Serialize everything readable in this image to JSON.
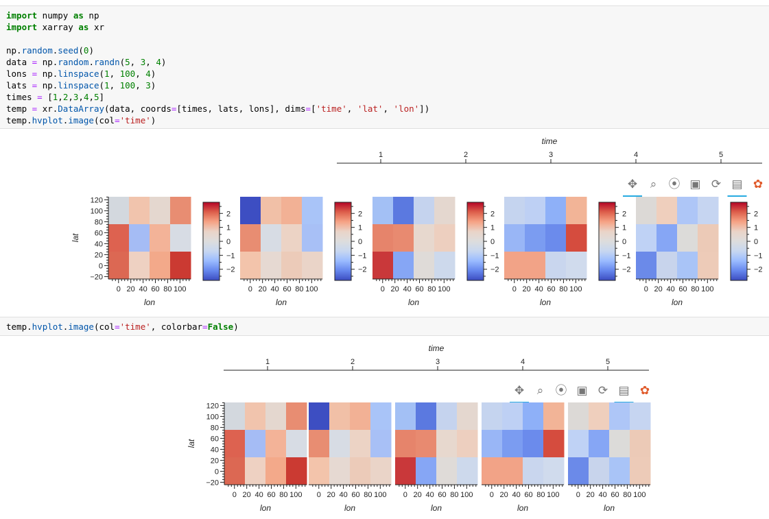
{
  "cell1": {
    "lines": [
      [
        [
          "kw",
          "import"
        ],
        [
          "t",
          " numpy "
        ],
        [
          "kw",
          "as"
        ],
        [
          "t",
          " np"
        ]
      ],
      [
        [
          "kw",
          "import"
        ],
        [
          "t",
          " xarray "
        ],
        [
          "kw",
          "as"
        ],
        [
          "t",
          " xr"
        ]
      ],
      [
        [
          "t",
          ""
        ]
      ],
      [
        [
          "t",
          "np."
        ],
        [
          "nb",
          "random"
        ],
        [
          "t",
          "."
        ],
        [
          "nb",
          "seed"
        ],
        [
          "t",
          "("
        ],
        [
          "num",
          "0"
        ],
        [
          "t",
          ")"
        ]
      ],
      [
        [
          "t",
          "data "
        ],
        [
          "op",
          "="
        ],
        [
          "t",
          " np."
        ],
        [
          "nb",
          "random"
        ],
        [
          "t",
          "."
        ],
        [
          "nb",
          "randn"
        ],
        [
          "t",
          "("
        ],
        [
          "num",
          "5"
        ],
        [
          "t",
          ", "
        ],
        [
          "num",
          "3"
        ],
        [
          "t",
          ", "
        ],
        [
          "num",
          "4"
        ],
        [
          "t",
          ")"
        ]
      ],
      [
        [
          "t",
          "lons "
        ],
        [
          "op",
          "="
        ],
        [
          "t",
          " np."
        ],
        [
          "nb",
          "linspace"
        ],
        [
          "t",
          "("
        ],
        [
          "num",
          "1"
        ],
        [
          "t",
          ", "
        ],
        [
          "num",
          "100"
        ],
        [
          "t",
          ", "
        ],
        [
          "num",
          "4"
        ],
        [
          "t",
          ")"
        ]
      ],
      [
        [
          "t",
          "lats "
        ],
        [
          "op",
          "="
        ],
        [
          "t",
          " np."
        ],
        [
          "nb",
          "linspace"
        ],
        [
          "t",
          "("
        ],
        [
          "num",
          "1"
        ],
        [
          "t",
          ", "
        ],
        [
          "num",
          "100"
        ],
        [
          "t",
          ", "
        ],
        [
          "num",
          "3"
        ],
        [
          "t",
          ")"
        ]
      ],
      [
        [
          "t",
          "times "
        ],
        [
          "op",
          "="
        ],
        [
          "t",
          " ["
        ],
        [
          "num",
          "1"
        ],
        [
          "t",
          ","
        ],
        [
          "num",
          "2"
        ],
        [
          "t",
          ","
        ],
        [
          "num",
          "3"
        ],
        [
          "t",
          ","
        ],
        [
          "num",
          "4"
        ],
        [
          "t",
          ","
        ],
        [
          "num",
          "5"
        ],
        [
          "t",
          "]"
        ]
      ],
      [
        [
          "t",
          "temp "
        ],
        [
          "op",
          "="
        ],
        [
          "t",
          " xr."
        ],
        [
          "nb",
          "DataArray"
        ],
        [
          "t",
          "(data, coords"
        ],
        [
          "op",
          "="
        ],
        [
          "t",
          "[times, lats, lons], dims"
        ],
        [
          "op",
          "="
        ],
        [
          "t",
          "["
        ],
        [
          "str",
          "'time'"
        ],
        [
          "t",
          ", "
        ],
        [
          "str",
          "'lat'"
        ],
        [
          "t",
          ", "
        ],
        [
          "str",
          "'lon'"
        ],
        [
          "t",
          "])"
        ]
      ],
      [
        [
          "t",
          "temp."
        ],
        [
          "nb",
          "hvplot"
        ],
        [
          "t",
          "."
        ],
        [
          "nb",
          "image"
        ],
        [
          "t",
          "(col"
        ],
        [
          "op",
          "="
        ],
        [
          "str",
          "'time'"
        ],
        [
          "t",
          ")"
        ]
      ]
    ]
  },
  "cell2": {
    "lines": [
      [
        [
          "t",
          "temp."
        ],
        [
          "nb",
          "hvplot"
        ],
        [
          "t",
          "."
        ],
        [
          "nb",
          "image"
        ],
        [
          "t",
          "(col"
        ],
        [
          "op",
          "="
        ],
        [
          "str",
          "'time'"
        ],
        [
          "t",
          ", colorbar"
        ],
        [
          "op",
          "="
        ],
        [
          "kw",
          "False"
        ],
        [
          "t",
          ")"
        ]
      ]
    ]
  },
  "slider": {
    "title": "time",
    "ticks": [
      "1",
      "2",
      "3",
      "4",
      "5"
    ]
  },
  "axes": {
    "xlabel": "lon",
    "ylabel": "lat",
    "xticks": [
      "0",
      "20",
      "40",
      "60",
      "80",
      "100"
    ],
    "yticks": [
      "120",
      "100",
      "80",
      "60",
      "40",
      "20",
      "0",
      "−20"
    ],
    "cbar_ticks": [
      "2",
      "1",
      "0",
      "−1",
      "−2"
    ]
  },
  "toolbar": {
    "icons": [
      "pan-icon",
      "box-zoom-icon",
      "wheel-zoom-icon",
      "save-icon",
      "reset-icon",
      "hover-icon",
      "bokeh-logo-icon"
    ]
  },
  "colors": {
    "grid": [
      [
        [
          "#d3d8de",
          "#f1c4ad",
          "#e4d7cf",
          "#e88d72"
        ],
        [
          "#dd6250",
          "#a5bcf5",
          "#f3b398",
          "#d7dce4"
        ],
        [
          "#dc6853",
          "#eed1c2",
          "#f3a98a",
          "#cb3a32"
        ]
      ],
      [
        [
          "#3d4ec2",
          "#f1c0a7",
          "#f2b195",
          "#a9c4f8"
        ],
        [
          "#e88d72",
          "#d7dce4",
          "#ecd3c5",
          "#a8c0f6"
        ],
        [
          "#f3c4ab",
          "#e6d9d2",
          "#eccbb9",
          "#ead4c8"
        ]
      ],
      [
        [
          "#a3c0f5",
          "#5b79e0",
          "#c5d3ee",
          "#e4d7cf"
        ],
        [
          "#e6846b",
          "#e88a70",
          "#e7d8ce",
          "#edcfbf"
        ],
        [
          "#c9383a",
          "#86a6f5",
          "#dfdbd8",
          "#cdd9ec"
        ]
      ],
      [
        [
          "#c5d4ef",
          "#bed0f4",
          "#8eb0f8",
          "#f2b497"
        ],
        [
          "#99b6f6",
          "#7b9cf1",
          "#6b8bec",
          "#d54c3e"
        ],
        [
          "#f2a387",
          "#f2a387",
          "#c9d6ee",
          "#d0dbed"
        ]
      ],
      [
        [
          "#dcd9d6",
          "#efcfbd",
          "#aec6f7",
          "#c6d5f1"
        ],
        [
          "#bfd2f5",
          "#86a6f5",
          "#dcdbd9",
          "#eccab7"
        ],
        [
          "#6b8ae9",
          "#c8d4ec",
          "#a9c4f7",
          "#edcbb8"
        ]
      ]
    ]
  }
}
